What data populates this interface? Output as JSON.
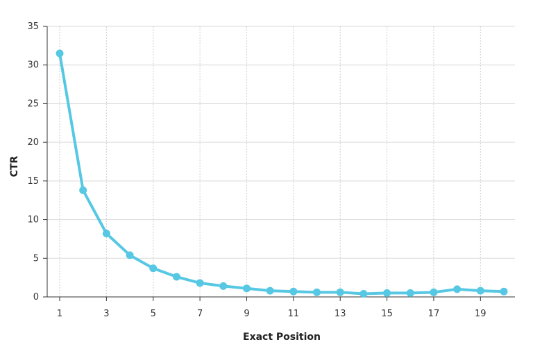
{
  "chart_data": {
    "type": "line",
    "xlabel": "Exact Position",
    "ylabel": "CTR",
    "xlim": [
      1,
      20
    ],
    "ylim": [
      0,
      35
    ],
    "x_ticks": [
      1,
      3,
      5,
      7,
      9,
      11,
      13,
      15,
      17,
      19
    ],
    "y_ticks": [
      0,
      5,
      10,
      15,
      20,
      25,
      30,
      35
    ],
    "grid": true,
    "legend": "none",
    "series": [
      {
        "color": "#56c8e3",
        "x": [
          1,
          2,
          3,
          4,
          5,
          6,
          7,
          8,
          9,
          10,
          11,
          12,
          13,
          14,
          15,
          16,
          17,
          18,
          19,
          20
        ],
        "y": [
          31.5,
          13.8,
          8.2,
          5.4,
          3.7,
          2.6,
          1.8,
          1.4,
          1.1,
          0.8,
          0.7,
          0.6,
          0.6,
          0.4,
          0.5,
          0.5,
          0.6,
          1.0,
          0.8,
          0.7
        ]
      }
    ]
  }
}
